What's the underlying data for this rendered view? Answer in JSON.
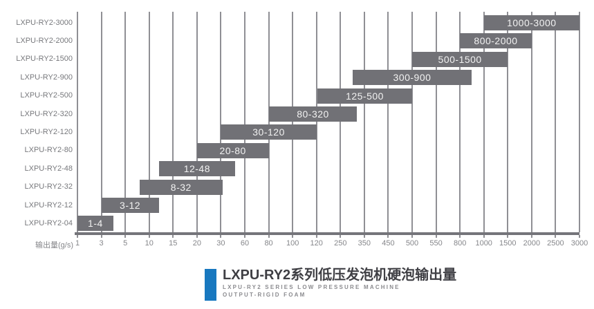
{
  "chart_data": {
    "type": "bar",
    "orientation": "horizontal-range",
    "title": "LXPU-RY2系列低压发泡机硬泡输出量",
    "subtitle_line1": "LXPU-RY2 SERIES LOW PRESSURE MACHINE",
    "subtitle_line2": "OUTPUT-RIGID FOAM",
    "xlabel": "输出量(g/s)",
    "x_ticks": [
      1,
      3,
      5,
      10,
      15,
      20,
      30,
      60,
      80,
      100,
      120,
      250,
      350,
      450,
      500,
      550,
      800,
      1000,
      1500,
      2000,
      2500,
      3000
    ],
    "x_scale": "categorical-piecewise",
    "grid": true,
    "legend": false,
    "rows": [
      {
        "label": "LXPU-RY2-3000",
        "start": 1000,
        "end": 3000,
        "bar_label": "1000-3000"
      },
      {
        "label": "LXPU-RY2-2000",
        "start": 800,
        "end": 2000,
        "bar_label": "800-2000"
      },
      {
        "label": "LXPU-RY2-1500",
        "start": 500,
        "end": 1500,
        "bar_label": "500-1500"
      },
      {
        "label": "LXPU-RY2-900",
        "start": 300,
        "end": 900,
        "bar_label": "300-900"
      },
      {
        "label": "LXPU-RY2-500",
        "start": 125,
        "end": 500,
        "bar_label": "125-500"
      },
      {
        "label": "LXPU-RY2-320",
        "start": 80,
        "end": 320,
        "bar_label": "80-320"
      },
      {
        "label": "LXPU-RY2-120",
        "start": 30,
        "end": 120,
        "bar_label": "30-120"
      },
      {
        "label": "LXPU-RY2-80",
        "start": 20,
        "end": 80,
        "bar_label": "20-80"
      },
      {
        "label": "LXPU-RY2-48",
        "start": 12,
        "end": 48,
        "bar_label": "12-48"
      },
      {
        "label": "LXPU-RY2-32",
        "start": 8,
        "end": 32,
        "bar_label": "8-32"
      },
      {
        "label": "LXPU-RY2-12",
        "start": 3,
        "end": 12,
        "bar_label": "3-12"
      },
      {
        "label": "LXPU-RY2-04",
        "start": 1,
        "end": 4,
        "bar_label": "1-4"
      }
    ],
    "colors": {
      "background": "#ffffff",
      "bar": "#717176",
      "gridline": "#8f8f94",
      "axis_line": "#75757a",
      "row_label": "#77787c",
      "tick_label": "#85868a",
      "bar_label": "#f2f2f2",
      "title": "#3f3f44",
      "subtitle": "#8b8b8f",
      "accent_blue": "#1878bf"
    }
  }
}
